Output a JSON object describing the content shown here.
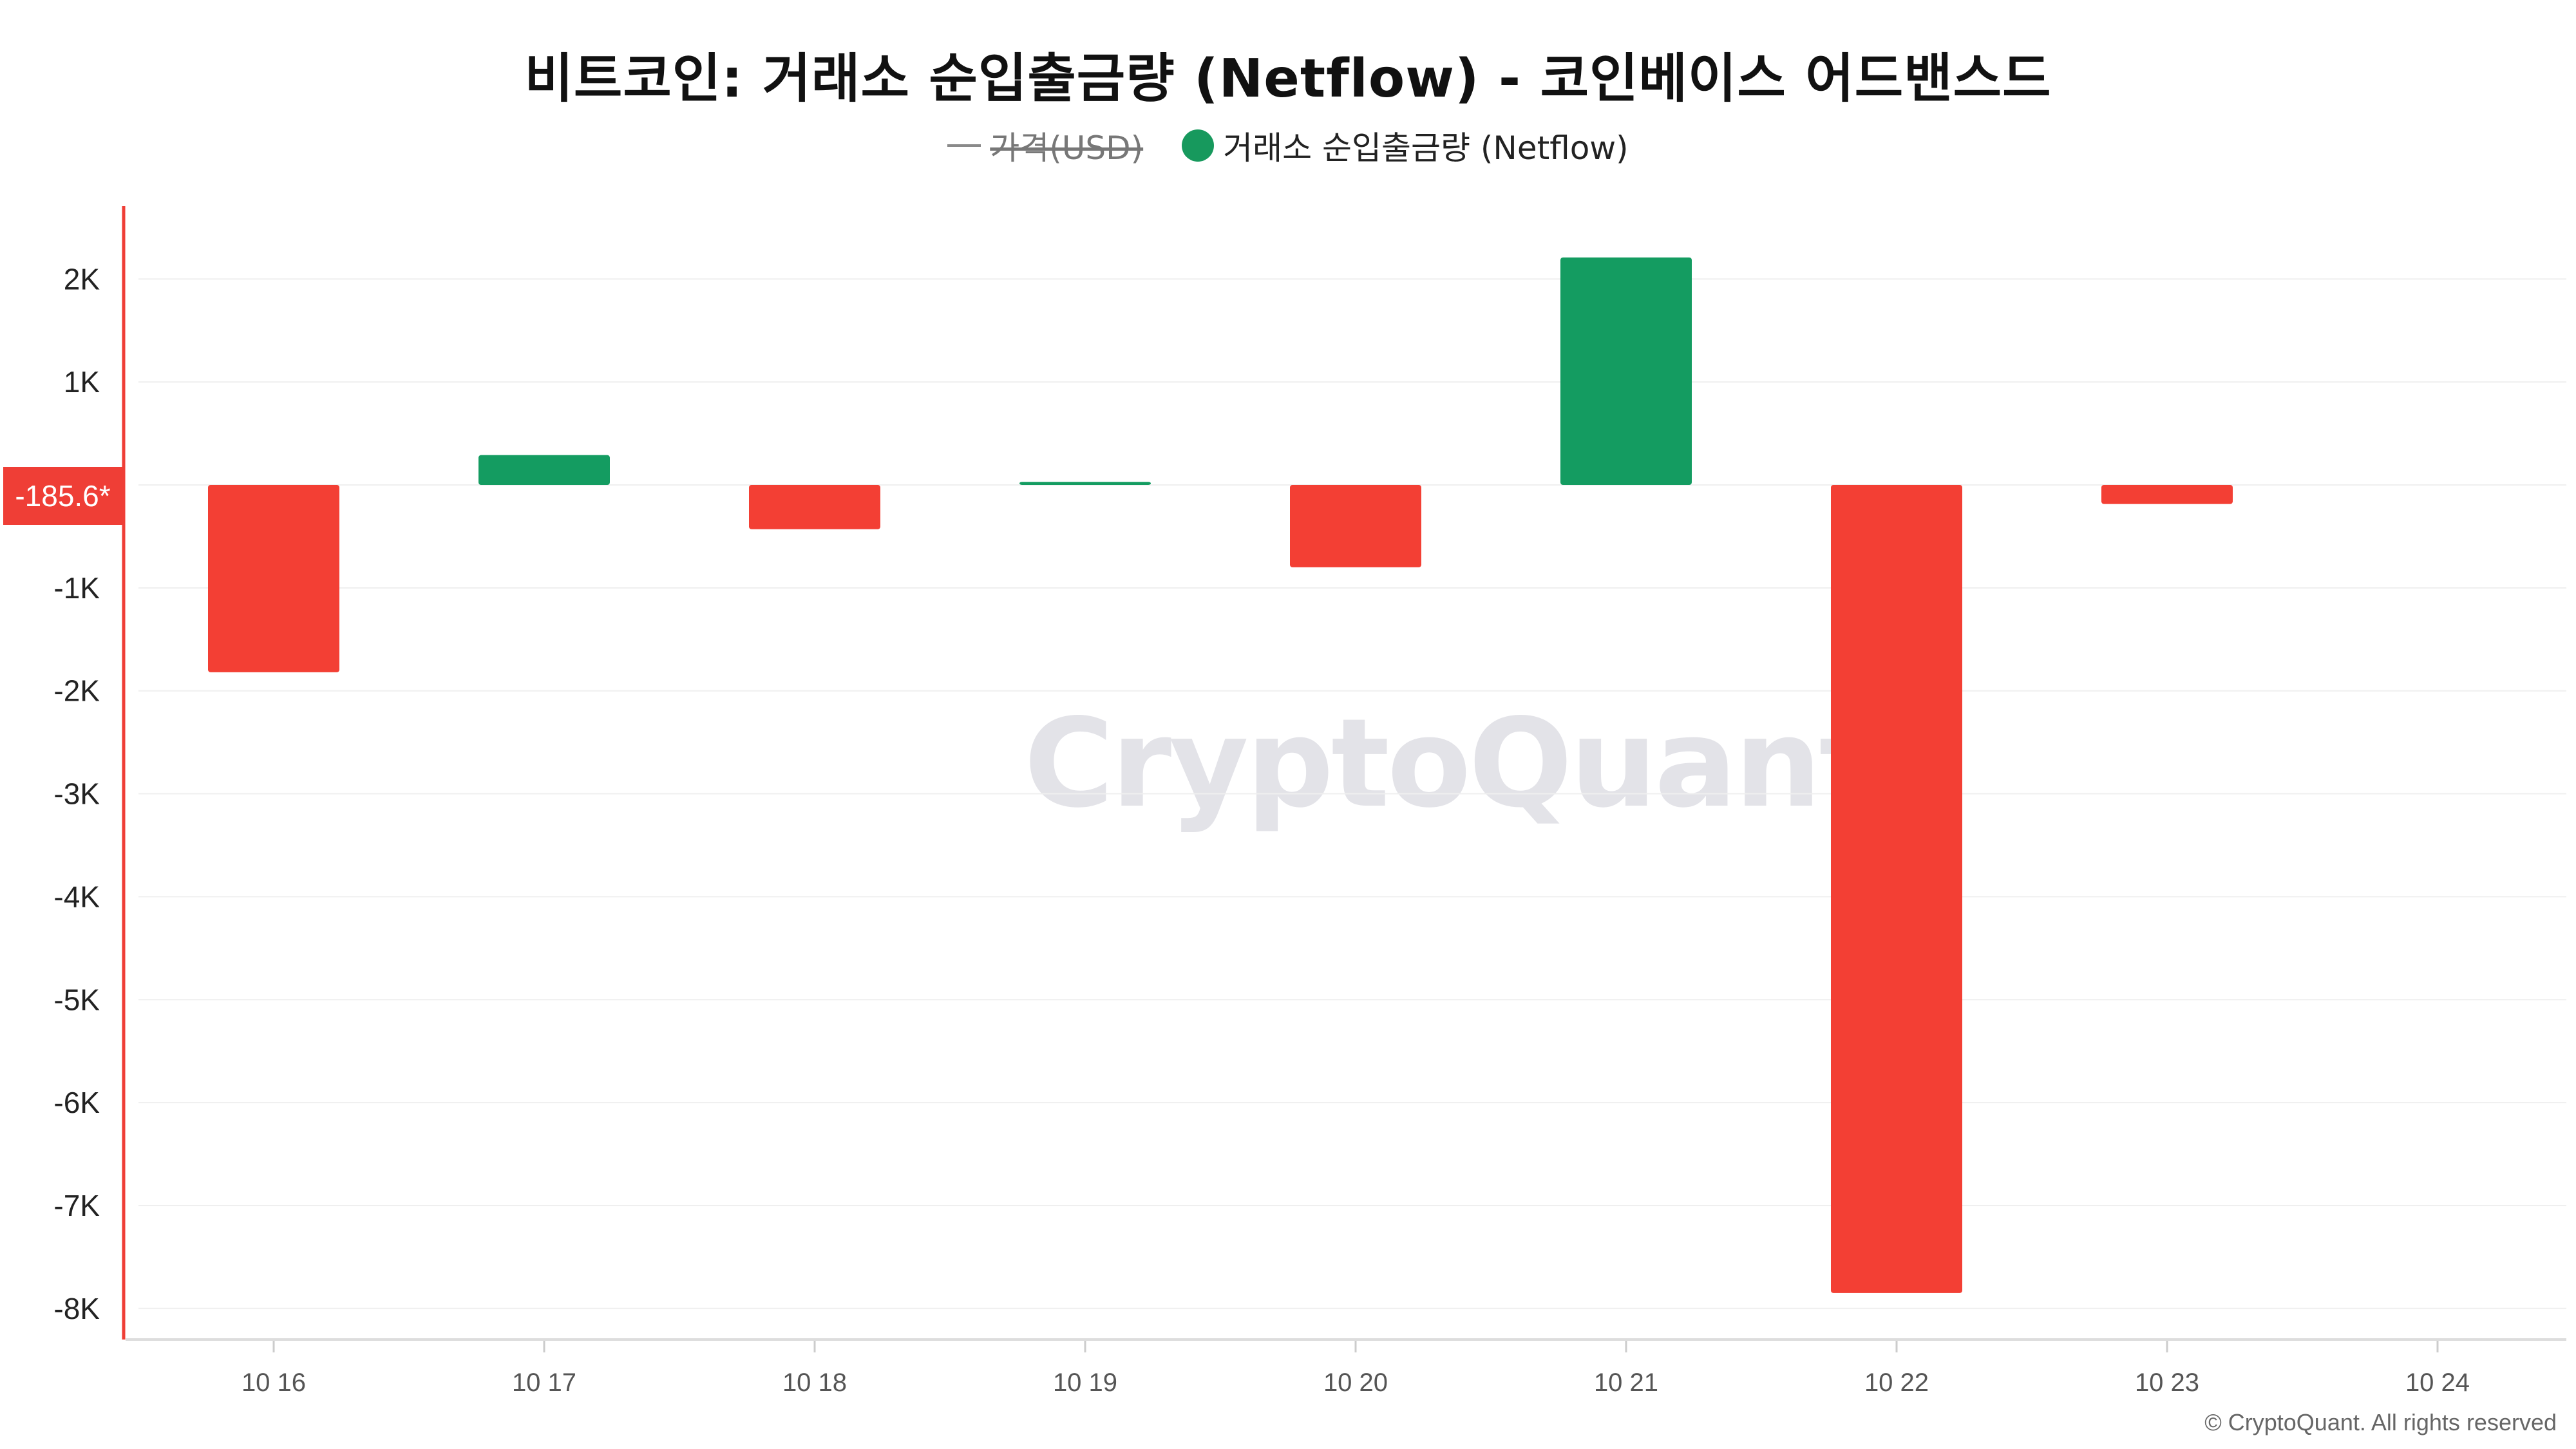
{
  "title": "비트코인: 거래소 순입출금량 (Netflow) - 코인베이스 어드밴스드",
  "legend": {
    "price_label": "가격(USD)",
    "netflow_label": "거래소 순입출금량 (Netflow)",
    "netflow_color": "#17995d"
  },
  "current_value_label": "-185.6*",
  "watermark": "CryptoQuant",
  "copyright": "© CryptoQuant. All rights reserved",
  "colors": {
    "positive": "#149c61",
    "negative": "#f33f34",
    "axis_line": "#ef3e36"
  },
  "chart_data": {
    "type": "bar",
    "title": "비트코인: 거래소 순입출금량 (Netflow) - 코인베이스 어드밴스드",
    "categories": [
      "10 16",
      "10 17",
      "10 18",
      "10 19",
      "10 20",
      "10 21",
      "10 22",
      "10 23",
      "10 24"
    ],
    "series": [
      {
        "name": "거래소 순입출금량 (Netflow)",
        "values": [
          -1820,
          290,
          -430,
          30,
          -800,
          2210,
          -7850,
          -185.6,
          null
        ]
      }
    ],
    "ylim": [
      -8400,
      2700
    ],
    "yticks": [
      2000,
      1000,
      -1000,
      -2000,
      -3000,
      -4000,
      -5000,
      -6000,
      -7000,
      -8000
    ],
    "ytick_labels": [
      "2K",
      "1K",
      "-1K",
      "-2K",
      "-3K",
      "-4K",
      "-5K",
      "-6K",
      "-7K",
      "-8K"
    ],
    "grid": true,
    "legend_position": "top-center"
  }
}
